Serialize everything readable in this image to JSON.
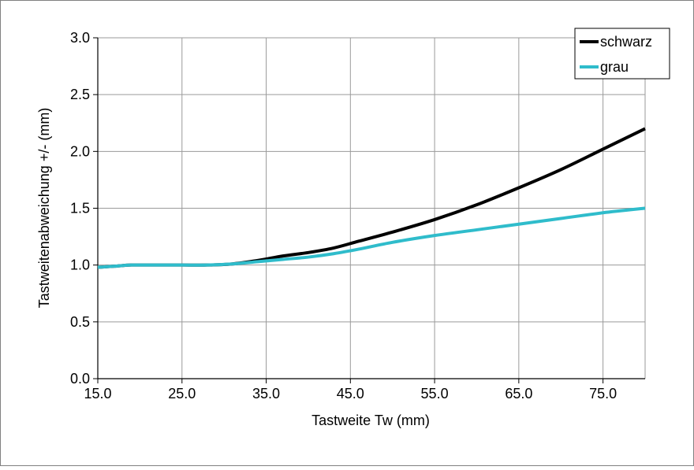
{
  "chart_data": {
    "type": "line",
    "title": "",
    "xlabel": "Tastweite Tw (mm)",
    "ylabel": "Tastweitenabweichung +/- (mm)",
    "xlim": [
      15,
      80
    ],
    "ylim": [
      0,
      3
    ],
    "x_ticks": [
      "15.0",
      "25.0",
      "35.0",
      "45.0",
      "55.0",
      "65.0",
      "75.0"
    ],
    "y_ticks": [
      "0.0",
      "0.5",
      "1.0",
      "1.5",
      "2.0",
      "2.5",
      "3.0"
    ],
    "grid": true,
    "legend_position": "top-right",
    "series": [
      {
        "name": "schwarz",
        "color": "#000000",
        "x": [
          15,
          17,
          19,
          22,
          25,
          28,
          31,
          34,
          37,
          40,
          43,
          46,
          50,
          55,
          60,
          65,
          70,
          75,
          80
        ],
        "y": [
          0.98,
          0.99,
          1.0,
          1.0,
          1.0,
          1.0,
          1.01,
          1.04,
          1.08,
          1.11,
          1.15,
          1.21,
          1.29,
          1.4,
          1.53,
          1.68,
          1.84,
          2.02,
          2.2
        ]
      },
      {
        "name": "grau",
        "color": "#2fbccb",
        "x": [
          15,
          17,
          19,
          22,
          25,
          28,
          31,
          34,
          37,
          40,
          43,
          46,
          50,
          55,
          60,
          65,
          70,
          75,
          80
        ],
        "y": [
          0.98,
          0.99,
          1.0,
          1.0,
          1.0,
          1.0,
          1.01,
          1.03,
          1.05,
          1.07,
          1.1,
          1.14,
          1.2,
          1.26,
          1.31,
          1.36,
          1.41,
          1.46,
          1.5
        ]
      }
    ]
  }
}
